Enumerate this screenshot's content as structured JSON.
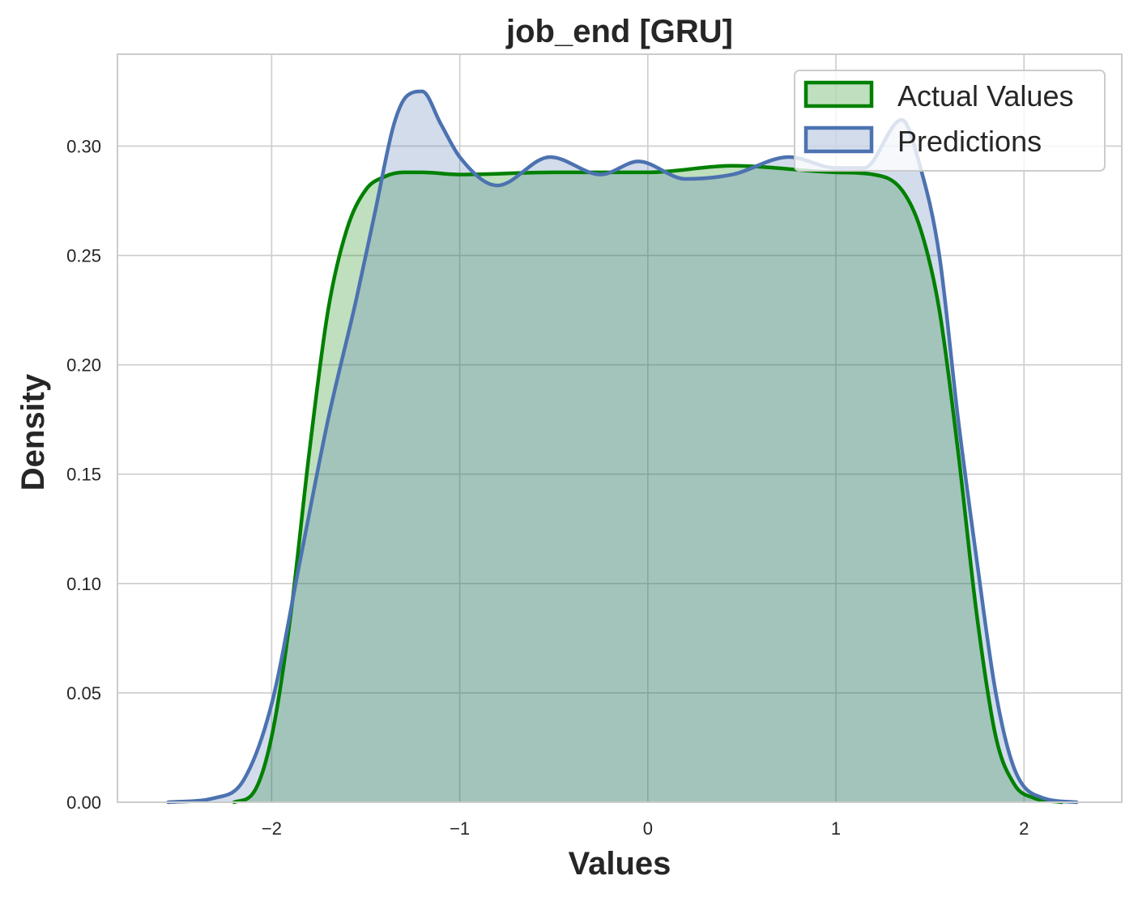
{
  "chart_data": {
    "type": "area",
    "title": "job_end [GRU]",
    "xlabel": "Values",
    "ylabel": "Density",
    "xlim": [
      -2.82,
      2.52
    ],
    "ylim": [
      0,
      0.342
    ],
    "xticks": [
      -2,
      -1,
      0,
      1,
      2
    ],
    "xtick_labels": [
      "−2",
      "−1",
      "0",
      "1",
      "2"
    ],
    "yticks": [
      0.0,
      0.05,
      0.1,
      0.15,
      0.2,
      0.25,
      0.3
    ],
    "ytick_labels": [
      "0.00",
      "0.05",
      "0.10",
      "0.15",
      "0.20",
      "0.25",
      "0.30"
    ],
    "grid": true,
    "legend_position": "top-right",
    "series": [
      {
        "name": "Actual Values",
        "color": "#008000",
        "fill": "#008000",
        "x": [
          -2.2,
          -2.1,
          -2.0,
          -1.9,
          -1.8,
          -1.7,
          -1.6,
          -1.5,
          -1.4,
          -1.3,
          -1.2,
          -1.0,
          -0.5,
          0.0,
          0.45,
          1.0,
          1.2,
          1.35,
          1.45,
          1.55,
          1.65,
          1.75,
          1.85,
          1.95,
          2.05,
          2.2
        ],
        "y": [
          0.0,
          0.004,
          0.03,
          0.085,
          0.16,
          0.225,
          0.262,
          0.28,
          0.286,
          0.288,
          0.288,
          0.287,
          0.288,
          0.288,
          0.291,
          0.288,
          0.287,
          0.28,
          0.262,
          0.225,
          0.16,
          0.085,
          0.03,
          0.008,
          0.002,
          0.0
        ]
      },
      {
        "name": "Predictions",
        "color": "#4c72b0",
        "fill": "#4c72b0",
        "x": [
          -2.55,
          -2.3,
          -2.15,
          -2.0,
          -1.85,
          -1.7,
          -1.55,
          -1.45,
          -1.35,
          -1.28,
          -1.2,
          -1.1,
          -1.0,
          -0.8,
          -0.52,
          -0.25,
          -0.05,
          0.2,
          0.45,
          0.75,
          1.0,
          1.15,
          1.35,
          1.45,
          1.55,
          1.65,
          1.75,
          1.85,
          1.95,
          2.1,
          2.28
        ],
        "y": [
          0.0,
          0.002,
          0.01,
          0.045,
          0.11,
          0.175,
          0.23,
          0.27,
          0.31,
          0.323,
          0.325,
          0.31,
          0.295,
          0.282,
          0.295,
          0.287,
          0.293,
          0.285,
          0.287,
          0.295,
          0.29,
          0.29,
          0.312,
          0.29,
          0.25,
          0.175,
          0.11,
          0.05,
          0.015,
          0.002,
          0.0
        ]
      }
    ]
  }
}
